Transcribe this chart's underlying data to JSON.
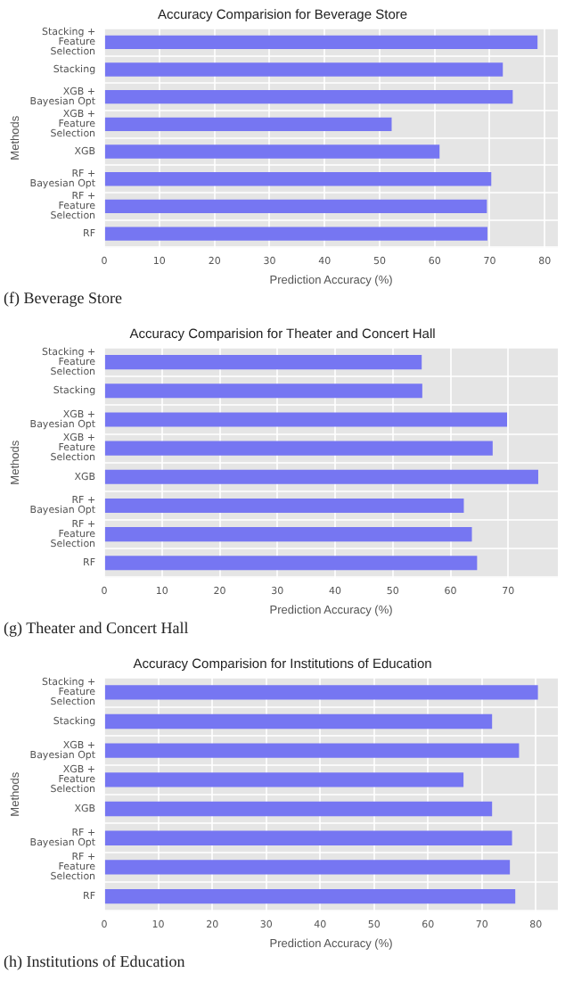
{
  "chart_data": [
    {
      "type": "bar",
      "orientation": "horizontal",
      "title": "Accuracy Comparision for Beverage Store",
      "xlabel": "Prediction Accuracy (%)",
      "ylabel": "Methods",
      "categories": [
        "Stacking + Feature Selection",
        "Stacking",
        "XGB + Bayesian Opt",
        "XGB + Feature Selection",
        "XGB",
        "RF + Bayesian Opt",
        "RF + Feature Selection",
        "RF"
      ],
      "values": [
        78.7,
        72.4,
        74.2,
        52.2,
        60.9,
        70.3,
        69.5,
        69.6
      ],
      "color": "#7676f2",
      "xlim": [
        0,
        82.4
      ],
      "xticks": [
        0,
        10,
        20,
        30,
        40,
        50,
        60,
        70,
        80
      ],
      "grid": true,
      "legend": false,
      "annotations": [
        "(f) Beverage Store"
      ]
    },
    {
      "type": "bar",
      "orientation": "horizontal",
      "title": "Accuracy Comparision for Theater and Concert Hall",
      "xlabel": "Prediction Accuracy (%)",
      "ylabel": "Methods",
      "categories": [
        "Stacking + Feature Selection",
        "Stacking",
        "XGB + Bayesian Opt",
        "XGB + Feature Selection",
        "XGB",
        "RF + Bayesian Opt",
        "RF + Feature Selection",
        "RF"
      ],
      "values": [
        55.0,
        55.1,
        69.8,
        67.3,
        75.2,
        62.3,
        63.7,
        64.6
      ],
      "color": "#7676f2",
      "xlim": [
        0,
        78.6
      ],
      "xticks": [
        0,
        10,
        20,
        30,
        40,
        50,
        60,
        70
      ],
      "grid": true,
      "legend": false,
      "annotations": [
        "(g) Theater and Concert Hall"
      ]
    },
    {
      "type": "bar",
      "orientation": "horizontal",
      "title": "Accuracy Comparision for Institutions of Education",
      "xlabel": "Prediction Accuracy (%)",
      "ylabel": "Methods",
      "categories": [
        "Stacking + Feature Selection",
        "Stacking",
        "XGB + Bayesian Opt",
        "XGB + Feature Selection",
        "XGB",
        "RF + Bayesian Opt",
        "RF + Feature Selection",
        "RF"
      ],
      "values": [
        80.4,
        71.9,
        76.9,
        66.6,
        71.9,
        75.6,
        75.2,
        76.2
      ],
      "color": "#7676f2",
      "xlim": [
        0,
        84.1
      ],
      "xticks": [
        0,
        10,
        20,
        30,
        40,
        50,
        60,
        70,
        80
      ],
      "grid": true,
      "legend": false,
      "annotations": [
        "(h) Institutions of Education"
      ]
    }
  ]
}
